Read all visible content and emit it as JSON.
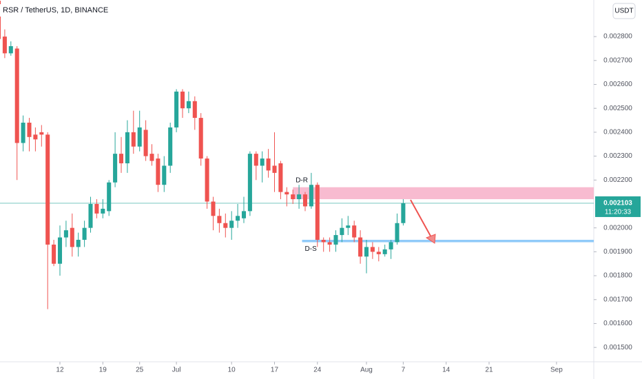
{
  "chart_data": {
    "type": "candlestick",
    "title": "RSR / TetherUS, 1D, BINANCE",
    "currency_button": "USDT",
    "up_color": "#26a69a",
    "down_color": "#ef5350",
    "series": [
      {
        "open": [
          0.00295,
          0.0028,
          0.00273,
          0.00275,
          0.002355,
          0.00244,
          0.00239,
          0.0024,
          0.00239,
          0.00193,
          0.00185,
          0.00196,
          0.002,
          0.00192,
          0.00195,
          0.002,
          0.0021,
          0.00206,
          0.00207,
          0.00219,
          0.00231,
          0.00227,
          0.0024,
          0.00234,
          0.00241,
          0.00231,
          0.00229,
          0.00218,
          0.00226,
          0.00242,
          0.00257,
          0.0025,
          0.00253,
          0.00246,
          0.00229,
          0.00211,
          0.00205,
          0.00202,
          0.002,
          0.00203,
          0.00204,
          0.00207,
          0.00231,
          0.00226,
          0.00229,
          0.00226,
          0.00227,
          0.00215,
          0.00214,
          0.00212,
          0.00214,
          0.00209,
          0.00218,
          0.00195,
          0.00194,
          0.00193,
          0.00197,
          0.002,
          0.00201,
          0.00196,
          0.00188,
          0.00192,
          0.0019,
          0.00189,
          0.00191,
          0.00194,
          0.00202
        ],
        "high": [
          0.00296,
          0.00283,
          0.00278,
          0.00276,
          0.00247,
          0.00246,
          0.00242,
          0.00243,
          0.0024,
          0.00195,
          0.00201,
          0.00203,
          0.00206,
          0.00198,
          0.00203,
          0.00213,
          0.00212,
          0.00212,
          0.0022,
          0.0024,
          0.00238,
          0.00245,
          0.00249,
          0.00249,
          0.00245,
          0.00235,
          0.00231,
          0.0023,
          0.00244,
          0.00258,
          0.00258,
          0.00257,
          0.00255,
          0.00248,
          0.0023,
          0.00213,
          0.00208,
          0.00206,
          0.00207,
          0.0021,
          0.00213,
          0.00232,
          0.00232,
          0.00232,
          0.00233,
          0.0024,
          0.00228,
          0.00217,
          0.00216,
          0.00218,
          0.00215,
          0.00223,
          0.00219,
          0.00196,
          0.00196,
          0.00199,
          0.00204,
          0.00205,
          0.00203,
          0.00199,
          0.00195,
          0.00194,
          0.00192,
          0.00193,
          0.00195,
          0.00206,
          0.00212
        ],
        "low": [
          0.00278,
          0.00271,
          0.00272,
          0.0022,
          0.00232,
          0.00232,
          0.00232,
          0.00234,
          0.00166,
          0.00184,
          0.0018,
          0.00192,
          0.00188,
          0.00188,
          0.00192,
          0.00198,
          0.00204,
          0.00204,
          0.00205,
          0.00217,
          0.00223,
          0.00223,
          0.00231,
          0.00232,
          0.00228,
          0.00226,
          0.00215,
          0.00215,
          0.00223,
          0.0024,
          0.00246,
          0.00248,
          0.00241,
          0.00226,
          0.00208,
          0.00199,
          0.00198,
          0.00196,
          0.00195,
          0.002,
          0.00202,
          0.00205,
          0.0022,
          0.00219,
          0.00221,
          0.00215,
          0.00212,
          0.00209,
          0.0021,
          0.00208,
          0.00207,
          0.00208,
          0.00192,
          0.0019,
          0.0019,
          0.0019,
          0.00194,
          0.00197,
          0.00194,
          0.00185,
          0.00181,
          0.00187,
          0.00186,
          0.00188,
          0.00187,
          0.00193,
          0.00201
        ],
        "close": [
          0.00279,
          0.00273,
          0.00276,
          0.002355,
          0.00244,
          0.00238,
          0.00237,
          0.00239,
          0.00193,
          0.00185,
          0.00196,
          0.00199,
          0.00192,
          0.00195,
          0.002,
          0.0021,
          0.00206,
          0.00208,
          0.00219,
          0.00231,
          0.00227,
          0.0024,
          0.00234,
          0.00242,
          0.0023,
          0.00228,
          0.00218,
          0.00226,
          0.00242,
          0.00257,
          0.0025,
          0.00253,
          0.00246,
          0.00229,
          0.00211,
          0.00205,
          0.00202,
          0.002,
          0.00203,
          0.00205,
          0.00207,
          0.00231,
          0.00226,
          0.00229,
          0.00224,
          0.00223,
          0.00215,
          0.00214,
          0.00212,
          0.00214,
          0.00209,
          0.00218,
          0.00195,
          0.00194,
          0.00193,
          0.00197,
          0.002,
          0.00201,
          0.00196,
          0.00188,
          0.00192,
          0.0019,
          0.00189,
          0.00191,
          0.00194,
          0.00202,
          0.002103
        ]
      }
    ],
    "xlim": [
      0.225,
      97.08
    ],
    "xticks": [
      {
        "value": 10,
        "label": "12"
      },
      {
        "value": 17,
        "label": "19"
      },
      {
        "value": 23,
        "label": "25"
      },
      {
        "value": 29,
        "label": "Jul"
      },
      {
        "value": 38,
        "label": "10"
      },
      {
        "value": 45,
        "label": "17"
      },
      {
        "value": 52,
        "label": "24"
      },
      {
        "value": 60,
        "label": "Aug"
      },
      {
        "value": 66,
        "label": "7"
      },
      {
        "value": 73,
        "label": "14"
      },
      {
        "value": 80,
        "label": "21"
      },
      {
        "value": 91,
        "label": "Sep"
      }
    ],
    "ylim": [
      0.00144,
      0.002953
    ],
    "yticks": [
      {
        "value": 0.0028,
        "label": "0.002800"
      },
      {
        "value": 0.0027,
        "label": "0.002700"
      },
      {
        "value": 0.0026,
        "label": "0.002600"
      },
      {
        "value": 0.0025,
        "label": "0.002500"
      },
      {
        "value": 0.0024,
        "label": "0.002400"
      },
      {
        "value": 0.0023,
        "label": "0.002300"
      },
      {
        "value": 0.0022,
        "label": "0.002200"
      },
      {
        "value": 0.002,
        "label": "0.002000"
      },
      {
        "value": 0.0019,
        "label": "0.001900"
      },
      {
        "value": 0.0018,
        "label": "0.001800"
      },
      {
        "value": 0.0017,
        "label": "0.001700"
      },
      {
        "value": 0.0016,
        "label": "0.001600"
      },
      {
        "value": 0.0015,
        "label": "0.001500"
      }
    ],
    "last_price": {
      "value": 0.002103,
      "label": "0.002103",
      "countdown": "11:20:33"
    },
    "zones": [
      {
        "label": "D-R",
        "top": 0.00217,
        "bottom": 0.00212,
        "x_start": 48,
        "color": "#f8bbd0"
      },
      {
        "label": "D-S",
        "top": 0.00195,
        "bottom": 0.00194,
        "x_start": 49.5,
        "color": "#90caf9"
      }
    ]
  }
}
